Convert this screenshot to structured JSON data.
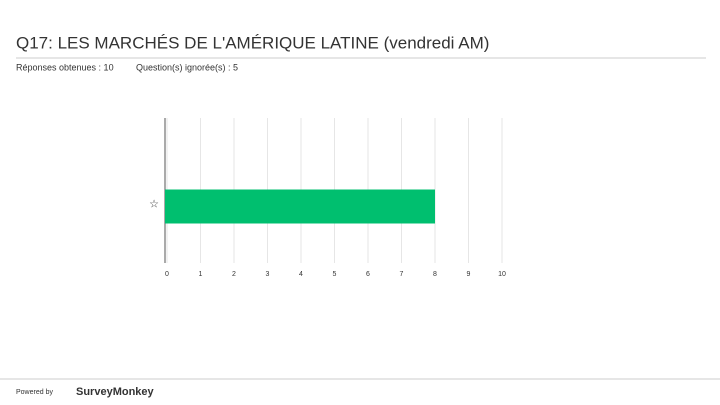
{
  "chart_data": {
    "type": "hbar",
    "title": "Q17: LES MARCHÉS DE L'AMÉRIQUE LATINE (vendredi AM)",
    "annotations": [
      "Réponses obtenues : 10",
      "Question(s) ignorée(s) : 5"
    ],
    "categories": [
      "☆"
    ],
    "values": [
      8
    ],
    "color": "#00bf6f",
    "xlim": [
      0,
      10
    ],
    "xticks": [
      0,
      1,
      2,
      3,
      4,
      5,
      6,
      7,
      8,
      9,
      10
    ],
    "grid": true
  },
  "footer": {
    "powered": "Powered by",
    "brand": "SurveyMonkey"
  }
}
